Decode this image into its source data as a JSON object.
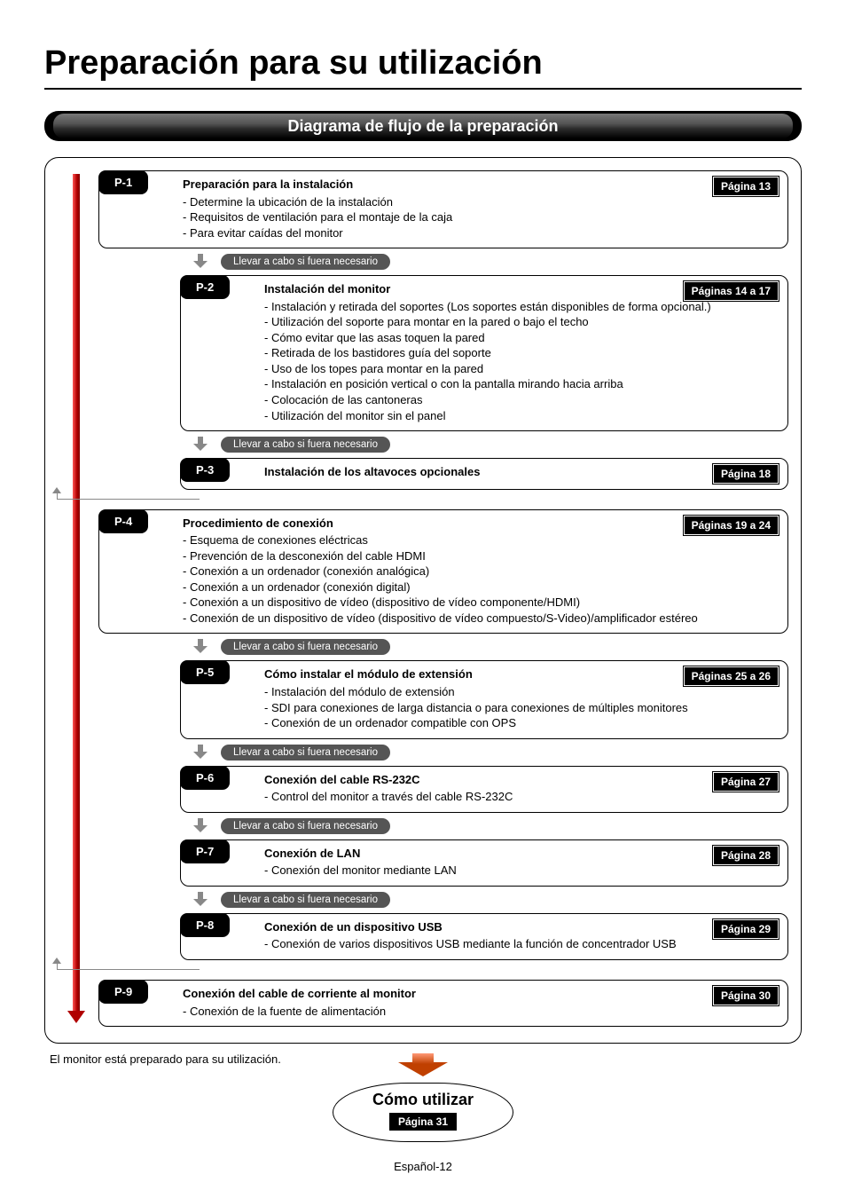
{
  "title": "Preparación para su utilización",
  "section_header": "Diagrama de flujo de la preparación",
  "necessary_label": "Llevar a cabo si fuera necesario",
  "final_note": "El monitor está preparado para su utilización.",
  "final_bubble": {
    "title": "Cómo utilizar",
    "page": "Página 31"
  },
  "footer": "Español-12",
  "steps": {
    "p1": {
      "label": "P-1",
      "page": "Página 13",
      "title": "Preparación para la instalación",
      "lines": [
        "- Determine la ubicación de la instalación",
        "- Requisitos de ventilación para el montaje de la caja",
        "- Para evitar caídas del monitor"
      ]
    },
    "p2": {
      "label": "P-2",
      "page": "Páginas 14 a 17",
      "title": "Instalación del monitor",
      "lines": [
        "- Instalación y retirada del soportes (Los soportes están disponibles de forma opcional.)",
        "- Utilización del soporte para montar en la pared o bajo el techo",
        "- Cómo evitar que las asas toquen la pared",
        "- Retirada de los bastidores guía del soporte",
        "- Uso de los topes para montar en la pared",
        "- Instalación en posición vertical o con la pantalla mirando hacia arriba",
        "- Colocación de las cantoneras",
        "- Utilización del monitor sin el panel"
      ]
    },
    "p3": {
      "label": "P-3",
      "page": "Página 18",
      "title": "Instalación de los altavoces opcionales",
      "lines": []
    },
    "p4": {
      "label": "P-4",
      "page": "Páginas 19 a 24",
      "title": "Procedimiento de conexión",
      "lines": [
        "- Esquema de conexiones eléctricas",
        "- Prevención de la desconexión del cable HDMI",
        "- Conexión a un ordenador (conexión analógica)",
        "- Conexión a un ordenador (conexión digital)",
        "- Conexión a un dispositivo de vídeo (dispositivo de vídeo componente/HDMI)",
        "- Conexión de un dispositivo de vídeo (dispositivo de vídeo compuesto/S-Video)/amplificador estéreo"
      ]
    },
    "p5": {
      "label": "P-5",
      "page": "Páginas 25 a 26",
      "title": "Cómo instalar el módulo de extensión",
      "lines": [
        "- Instalación del módulo de extensión",
        "- SDI para conexiones de larga distancia o para conexiones de múltiples monitores",
        "- Conexión de un ordenador compatible con OPS"
      ]
    },
    "p6": {
      "label": "P-6",
      "page": "Página 27",
      "title": "Conexión del cable RS-232C",
      "lines": [
        "- Control del monitor a través del cable RS-232C"
      ]
    },
    "p7": {
      "label": "P-7",
      "page": "Página 28",
      "title": "Conexión de LAN",
      "lines": [
        "- Conexión del monitor mediante LAN"
      ]
    },
    "p8": {
      "label": "P-8",
      "page": "Página 29",
      "title": "Conexión de un dispositivo USB",
      "lines": [
        "- Conexión de varios dispositivos USB mediante la función de concentrador USB"
      ]
    },
    "p9": {
      "label": "P-9",
      "page": "Página 30",
      "title": "Conexión del cable de corriente al monitor",
      "lines": [
        "- Conexión de la fuente de alimentación"
      ]
    }
  }
}
